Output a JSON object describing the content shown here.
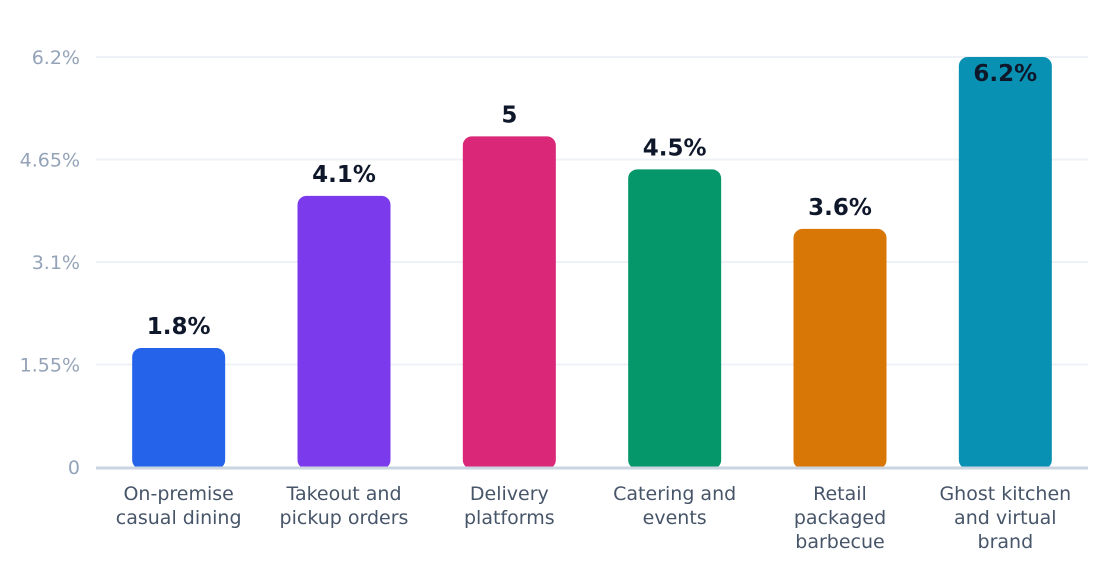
{
  "chart_data": {
    "type": "bar",
    "categories": [
      [
        "On-premise",
        "casual dining"
      ],
      [
        "Takeout and",
        "pickup orders"
      ],
      [
        "Delivery",
        "platforms"
      ],
      [
        "Catering and",
        "events"
      ],
      [
        "Retail",
        "packaged",
        "barbecue"
      ],
      [
        "Ghost kitchen",
        "and virtual",
        "brand"
      ]
    ],
    "values": [
      1.8,
      4.1,
      5,
      4.5,
      3.6,
      6.2
    ],
    "data_labels": [
      "1.8%",
      "4.1%",
      "5",
      "4.5%",
      "3.6%",
      "6.2%"
    ],
    "colors": [
      "#2563eb",
      "#7c3aed",
      "#db2777",
      "#059669",
      "#d97706",
      "#0891b2"
    ],
    "ylim": [
      0,
      6.2
    ],
    "yticks": [
      0,
      1.55,
      3.1,
      4.65,
      6.2
    ],
    "ytick_labels": [
      "0",
      "1.55%",
      "3.1%",
      "4.65%",
      "6.2%"
    ],
    "grid": true,
    "title": "",
    "xlabel": "",
    "ylabel": ""
  }
}
